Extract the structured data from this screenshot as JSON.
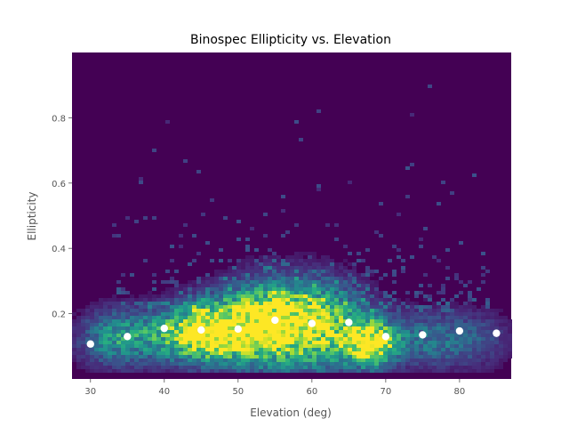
{
  "chart_data": {
    "type": "heatmap",
    "title": "Binospec Ellipticity vs. Elevation",
    "xlabel": "Elevation (deg)",
    "ylabel": "Ellipticity",
    "xlim": [
      27.5,
      87
    ],
    "ylim": [
      0,
      1.0
    ],
    "xticks": [
      30,
      40,
      50,
      60,
      70,
      80
    ],
    "xtick_labels": [
      "30",
      "40",
      "50",
      "60",
      "70",
      "80"
    ],
    "yticks": [
      0.2,
      0.4,
      0.6,
      0.8
    ],
    "ytick_labels": [
      "0.2",
      "0.4",
      "0.6",
      "0.8"
    ],
    "grid": false,
    "background_color": "#440154",
    "colormap": "viridis",
    "binned_medians": {
      "x": [
        30,
        35,
        40,
        45,
        50,
        55,
        60,
        65,
        70,
        75,
        80,
        85
      ],
      "y": [
        0.107,
        0.13,
        0.155,
        0.15,
        0.153,
        0.18,
        0.17,
        0.173,
        0.13,
        0.135,
        0.147,
        0.14
      ],
      "marker_color": "#ffffff"
    },
    "density_regions": [
      {
        "x_center": 45,
        "x_spread": 3.5,
        "y_center": 0.14,
        "y_spread": 0.06,
        "weight": 1.0
      },
      {
        "x_center": 51,
        "x_spread": 4,
        "y_center": 0.16,
        "y_spread": 0.08,
        "weight": 0.75
      },
      {
        "x_center": 56,
        "x_spread": 4,
        "y_center": 0.17,
        "y_spread": 0.09,
        "weight": 0.7
      },
      {
        "x_center": 62,
        "x_spread": 4,
        "y_center": 0.16,
        "y_spread": 0.09,
        "weight": 0.7
      },
      {
        "x_center": 68,
        "x_spread": 2.5,
        "y_center": 0.11,
        "y_spread": 0.05,
        "weight": 1.0
      },
      {
        "x_center": 37,
        "x_spread": 4,
        "y_center": 0.13,
        "y_spread": 0.06,
        "weight": 0.45
      },
      {
        "x_center": 32,
        "x_spread": 3,
        "y_center": 0.12,
        "y_spread": 0.06,
        "weight": 0.3
      },
      {
        "x_center": 76,
        "x_spread": 4,
        "y_center": 0.12,
        "y_spread": 0.06,
        "weight": 0.4
      },
      {
        "x_center": 83,
        "x_spread": 3,
        "y_center": 0.12,
        "y_spread": 0.06,
        "weight": 0.2
      }
    ]
  }
}
